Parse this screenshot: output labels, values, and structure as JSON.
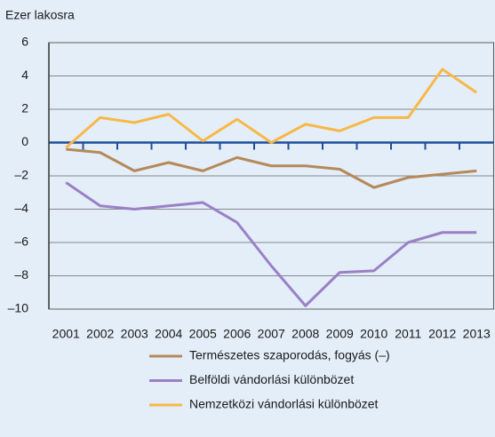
{
  "chart_data": {
    "type": "line",
    "ylabel": "Ezer lakosra",
    "categories": [
      "2001",
      "2002",
      "2003",
      "2004",
      "2005",
      "2006",
      "2007",
      "2008",
      "2009",
      "2010",
      "2011",
      "2012",
      "2013"
    ],
    "series": [
      {
        "name": "Természetes szaporodás, fogyás (–)",
        "color": "#b5895a",
        "values": [
          -0.4,
          -0.6,
          -1.7,
          -1.2,
          -1.7,
          -0.9,
          -1.4,
          -1.4,
          -1.6,
          -2.7,
          -2.1,
          -1.9,
          -1.7
        ]
      },
      {
        "name": "Belföldi vándorlási különbözet",
        "color": "#9b80c6",
        "values": [
          -2.4,
          -3.8,
          -4.0,
          -3.8,
          -3.6,
          -4.8,
          -7.4,
          -9.8,
          -7.8,
          -7.7,
          -6.0,
          -5.4,
          -5.4
        ]
      },
      {
        "name": "Nemzetközi vándorlási különbözet",
        "color": "#f8b848",
        "values": [
          -0.3,
          1.5,
          1.2,
          1.7,
          0.1,
          1.4,
          0.0,
          1.1,
          0.7,
          1.5,
          1.5,
          4.4,
          3.0
        ]
      }
    ],
    "ylim": [
      -10,
      6
    ],
    "yticks": [
      6,
      4,
      2,
      0,
      {
        "value": -2,
        "label": "–2"
      },
      {
        "value": -4,
        "label": "–4"
      },
      {
        "value": -6,
        "label": "–6"
      },
      {
        "value": -8,
        "label": "–8"
      },
      {
        "value": -10,
        "label": "–10"
      }
    ],
    "grid": true,
    "legend": "bottom"
  }
}
